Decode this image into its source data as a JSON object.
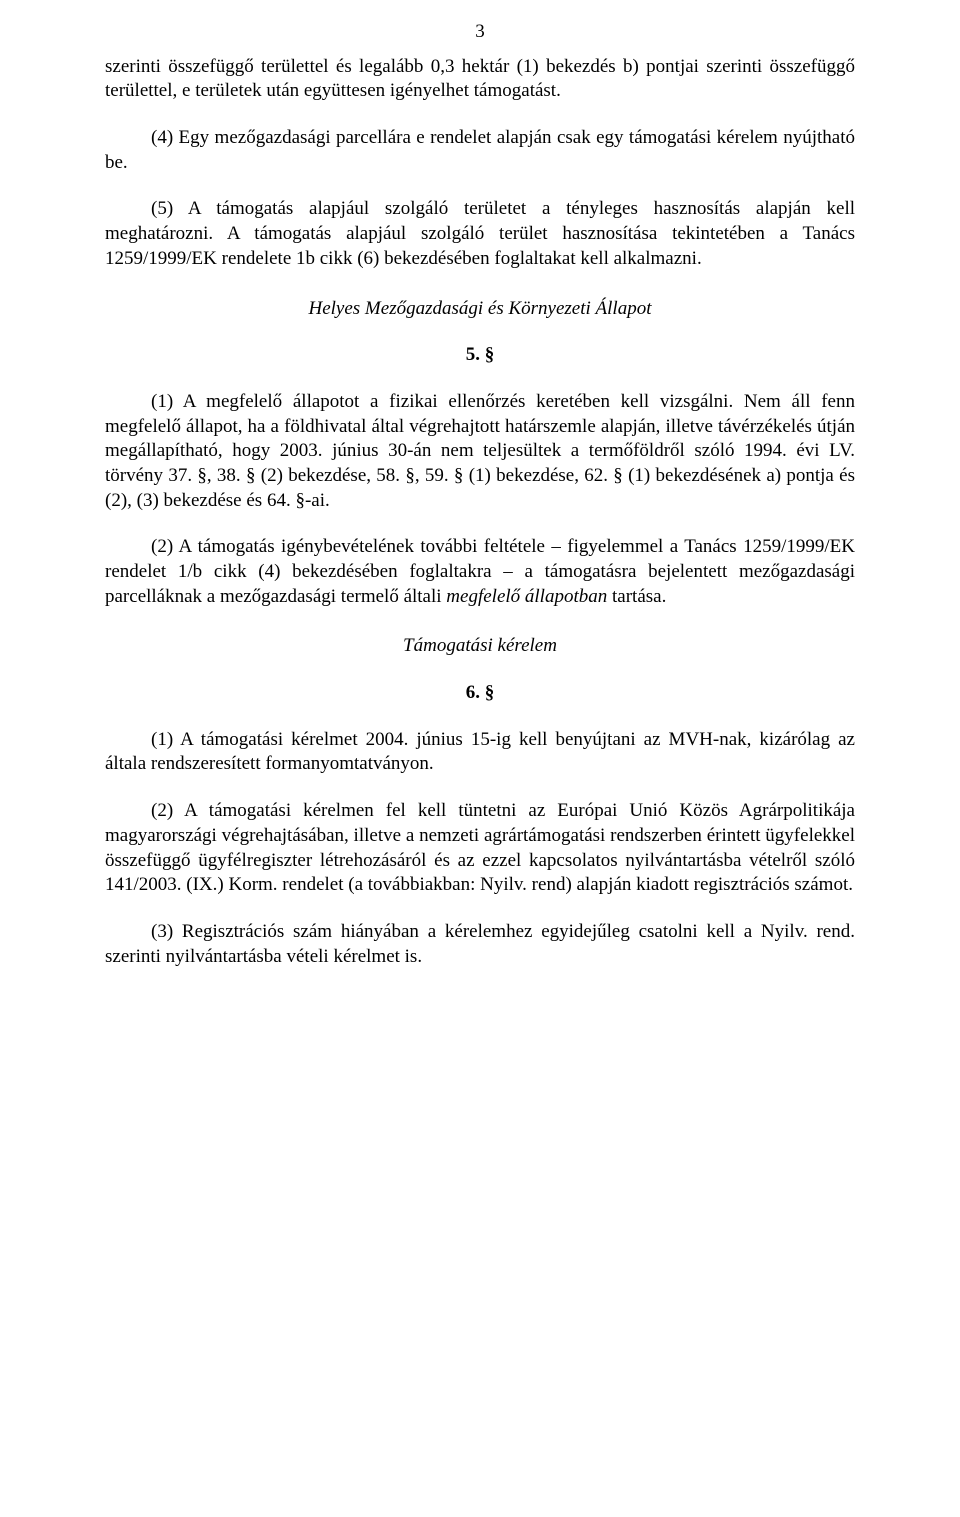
{
  "pageNumber": "3",
  "paragraphs": {
    "p1": "szerinti összefüggő területtel és legalább 0,3 hektár (1) bekezdés b) pontjai szerinti összefüggő területtel, e területek után együttesen igényelhet támogatást.",
    "p2": "(4) Egy mezőgazdasági parcellára e rendelet alapján csak egy támogatási kérelem nyújtható be.",
    "p3": "(5) A támogatás alapjául szolgáló területet a tényleges hasznosítás alapján kell meghatározni. A támogatás alapjául szolgáló terület hasznosítása tekintetében a Tanács 1259/1999/EK rendelete 1b cikk (6) bekezdésében foglaltakat kell alkalmazni.",
    "p4": "(1) A megfelelő állapotot a fizikai ellenőrzés keretében kell vizsgálni. Nem áll fenn megfelelő állapot, ha a földhivatal által végrehajtott határszemle alapján, illetve távérzékelés útján megállapítható, hogy 2003. június 30-án nem teljesültek a termőföldről szóló 1994. évi LV. törvény 37. §, 38. § (2) bekezdése, 58. §, 59. § (1) bekezdése, 62. § (1) bekezdésének a) pontja és (2), (3) bekezdése és 64. §-ai.",
    "p5_part1": "(2) A támogatás igénybevételének további feltétele – figyelemmel a Tanács 1259/1999/EK rendelet 1/b cikk (4) bekezdésében foglaltakra – a támogatásra bejelentett mezőgazdasági parcelláknak a mezőgazdasági termelő általi ",
    "p5_italic": "megfelelő állapotban",
    "p5_part2": " tartása.",
    "p6": "(1) A támogatási kérelmet 2004. június 15-ig kell benyújtani az MVH-nak, kizárólag az általa rendszeresített formanyomtatványon.",
    "p7": "(2) A támogatási kérelmen fel kell tüntetni az Európai Unió Közös Agrárpolitikája magyarországi végrehajtásában, illetve a nemzeti agrártámogatási rendszerben érintett ügyfelekkel összefüggő ügyfélregiszter létrehozásáról és az ezzel kapcsolatos nyilvántartásba vételről szóló 141/2003. (IX.) Korm. rendelet (a továbbiakban: Nyilv. rend) alapján kiadott regisztrációs számot.",
    "p8": "(3) Regisztrációs szám hiányában a kérelemhez egyidejűleg csatolni kell a Nyilv. rend. szerinti nyilvántartásba vételi kérelmet is."
  },
  "sectionTitles": {
    "title1": "Helyes Mezőgazdasági és Környezeti Állapot",
    "title2": "Támogatási kérelem"
  },
  "sectionNumbers": {
    "num1": "5. §",
    "num2": "6. §"
  }
}
